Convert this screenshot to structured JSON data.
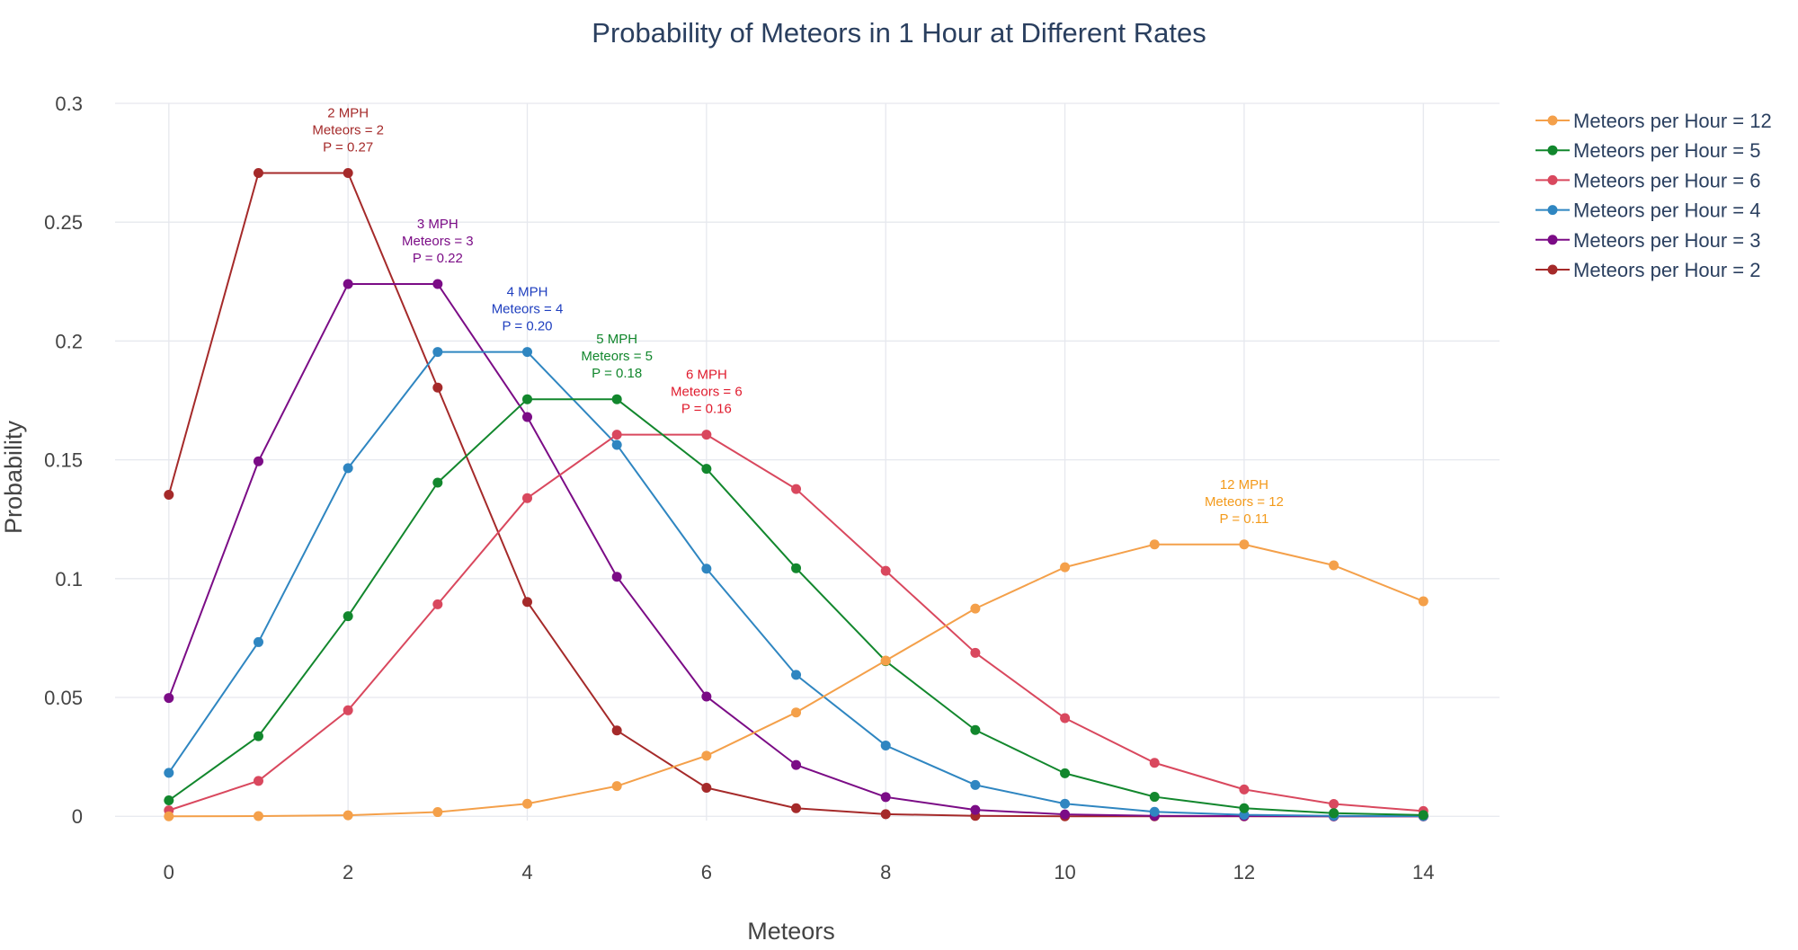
{
  "chart_data": {
    "type": "line",
    "title": "Probability of Meteors in 1 Hour at Different Rates",
    "xlabel": "Meteors",
    "ylabel": "Probability",
    "x": [
      0,
      1,
      2,
      3,
      4,
      5,
      6,
      7,
      8,
      9,
      10,
      11,
      12,
      13,
      14
    ],
    "xlim": [
      -0.6,
      14.85
    ],
    "ylim": [
      -0.0018,
      0.3
    ],
    "xticks": [
      0,
      2,
      4,
      6,
      8,
      10,
      12,
      14
    ],
    "xtick_labels": [
      "0",
      "2",
      "4",
      "6",
      "8",
      "10",
      "12",
      "14"
    ],
    "yticks": [
      0,
      0.05,
      0.1,
      0.15,
      0.2,
      0.25,
      0.3
    ],
    "ytick_labels": [
      "0",
      "0.05",
      "0.1",
      "0.15",
      "0.2",
      "0.25",
      "0.3"
    ],
    "grid": true,
    "legend_position": "top-right",
    "series": [
      {
        "name": "Meteors per Hour = 12",
        "color": "#f4a04a",
        "values": [
          6.1e-06,
          7.37e-05,
          0.00044,
          0.00177,
          0.0053,
          0.0127,
          0.0255,
          0.0437,
          0.0655,
          0.0874,
          0.1048,
          0.1144,
          0.1144,
          0.1056,
          0.0905
        ]
      },
      {
        "name": "Meteors per Hour = 5",
        "color": "#12872d",
        "values": [
          0.0067,
          0.0337,
          0.0842,
          0.1404,
          0.1755,
          0.1755,
          0.1462,
          0.1044,
          0.0653,
          0.0363,
          0.0181,
          0.0082,
          0.0034,
          0.0013,
          0.0005
        ]
      },
      {
        "name": "Meteors per Hour = 6",
        "color": "#d9485e",
        "values": [
          0.0025,
          0.0149,
          0.0446,
          0.0892,
          0.1339,
          0.1606,
          0.1606,
          0.1377,
          0.1033,
          0.0688,
          0.0413,
          0.0225,
          0.0113,
          0.0052,
          0.0022
        ]
      },
      {
        "name": "Meteors per Hour = 4",
        "color": "#2f86c1",
        "values": [
          0.0183,
          0.0733,
          0.1465,
          0.1954,
          0.1954,
          0.1563,
          0.1042,
          0.0595,
          0.0298,
          0.0132,
          0.0053,
          0.0019,
          0.0006,
          0.0002,
          0.0001
        ]
      },
      {
        "name": "Meteors per Hour = 3",
        "color": "#7b0c86",
        "values": [
          0.0498,
          0.1494,
          0.224,
          0.224,
          0.168,
          0.1008,
          0.0504,
          0.0216,
          0.0081,
          0.0027,
          0.0008,
          0.0002,
          0.0001,
          0.0,
          0.0
        ]
      },
      {
        "name": "Meteors per Hour = 2",
        "color": "#a52a2a",
        "values": [
          0.1353,
          0.2707,
          0.2707,
          0.1804,
          0.0902,
          0.0361,
          0.012,
          0.0034,
          0.0009,
          0.0002,
          0.0,
          0.0,
          0.0,
          0.0,
          0.0
        ]
      }
    ],
    "annotations": [
      {
        "x": 2,
        "y": 0.2707,
        "lines": [
          "2 MPH",
          "Meteors = 2",
          "P = 0.27"
        ],
        "color": "#a52a2a"
      },
      {
        "x": 3,
        "y": 0.224,
        "lines": [
          "3 MPH",
          "Meteors = 3",
          "P = 0.22"
        ],
        "color": "#7b0c86"
      },
      {
        "x": 4,
        "y": 0.1954,
        "lines": [
          "4 MPH",
          "Meteors = 4",
          "P = 0.20"
        ],
        "color": "#1f3fbf"
      },
      {
        "x": 5,
        "y": 0.1755,
        "lines": [
          "5 MPH",
          "Meteors = 5",
          "P = 0.18"
        ],
        "color": "#12872d"
      },
      {
        "x": 6,
        "y": 0.1606,
        "lines": [
          "6 MPH",
          "Meteors = 6",
          "P = 0.16"
        ],
        "color": "#e01b2d"
      },
      {
        "x": 12,
        "y": 0.1144,
        "lines": [
          "12 MPH",
          "Meteors = 12",
          "P = 0.11"
        ],
        "color": "#f39a1b"
      }
    ]
  }
}
